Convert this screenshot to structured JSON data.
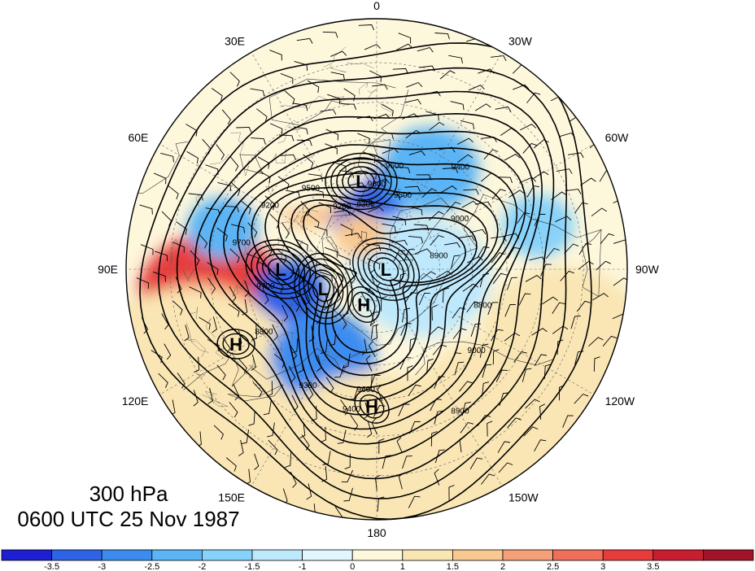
{
  "title": {
    "level": "300 hPa",
    "datetime": "0600 UTC 25 Nov 1987"
  },
  "longitude_labels": [
    {
      "text": "0",
      "lon": 0
    },
    {
      "text": "30W",
      "lon": -30
    },
    {
      "text": "60W",
      "lon": -60
    },
    {
      "text": "90W",
      "lon": -90
    },
    {
      "text": "120W",
      "lon": -120
    },
    {
      "text": "150W",
      "lon": -150
    },
    {
      "text": "180",
      "lon": 180
    },
    {
      "text": "150E",
      "lon": 150
    },
    {
      "text": "120E",
      "lon": 120
    },
    {
      "text": "90E",
      "lon": 90
    },
    {
      "text": "60E",
      "lon": 60
    },
    {
      "text": "30E",
      "lon": 30
    }
  ],
  "pressure_centers": [
    {
      "type": "L",
      "lon": 10,
      "lat": 62
    },
    {
      "type": "L",
      "lon": -90,
      "lat": 87
    },
    {
      "type": "L",
      "lon": 110,
      "lat": 72
    },
    {
      "type": "L",
      "lon": 90,
      "lat": 60
    },
    {
      "type": "H",
      "lon": 160,
      "lat": 78
    },
    {
      "type": "H",
      "lon": 118,
      "lat": 42
    },
    {
      "type": "H",
      "lon": 178,
      "lat": 48
    }
  ],
  "contour_labels": [
    "9600",
    "9400",
    "9300",
    "9500",
    "9200",
    "9000",
    "8800",
    "9700",
    "8900"
  ],
  "colorbar": {
    "colors": [
      "#1e1ed2",
      "#2d64e6",
      "#3c8cf0",
      "#5ab4f5",
      "#87d2fa",
      "#bee8fc",
      "#e2f6fd",
      "#fdf7dc",
      "#fae6b4",
      "#f8c891",
      "#f5a078",
      "#f06e5a",
      "#e63c3c",
      "#c81e32",
      "#a01428"
    ],
    "tick_labels": [
      "-3.5",
      "-3",
      "-2.5",
      "-2",
      "-1.5",
      "-1",
      "0",
      "1",
      "1.5",
      "2",
      "2.5",
      "3",
      "3.5"
    ]
  },
  "anomaly_blobs": [
    {
      "lon": 100,
      "lat": 40,
      "val": 3.2,
      "r": 16
    },
    {
      "lon": 112,
      "lat": 34,
      "val": 2.2,
      "r": 14
    },
    {
      "lon": 125,
      "lat": 25,
      "val": 1.2,
      "r": 22
    },
    {
      "lon": 12,
      "lat": 66,
      "val": -3.5,
      "r": 12
    },
    {
      "lon": -28,
      "lat": 55,
      "val": -2.5,
      "r": 12
    },
    {
      "lon": -75,
      "lat": 40,
      "val": -2.0,
      "r": 8
    },
    {
      "lon": 75,
      "lat": 42,
      "val": -2.5,
      "r": 8
    },
    {
      "lon": 104,
      "lat": 62,
      "val": -3.5,
      "r": 9
    },
    {
      "lon": 148,
      "lat": 58,
      "val": -2.8,
      "r": 13
    },
    {
      "lon": -100,
      "lat": 75,
      "val": -1.5,
      "r": 18
    },
    {
      "lon": -70,
      "lat": 82,
      "val": -1.2,
      "r": 14
    },
    {
      "lon": 45,
      "lat": 60,
      "val": 1.8,
      "r": 8
    },
    {
      "lon": 25,
      "lat": 78,
      "val": 1.5,
      "r": 7
    },
    {
      "lon": -110,
      "lat": 32,
      "val": 1.2,
      "r": 16
    },
    {
      "lon": -140,
      "lat": 30,
      "val": 1.0,
      "r": 20
    },
    {
      "lon": 180,
      "lat": 30,
      "val": 1.0,
      "r": 22
    },
    {
      "lon": 30,
      "lat": 40,
      "val": 0.8,
      "r": 20
    }
  ]
}
